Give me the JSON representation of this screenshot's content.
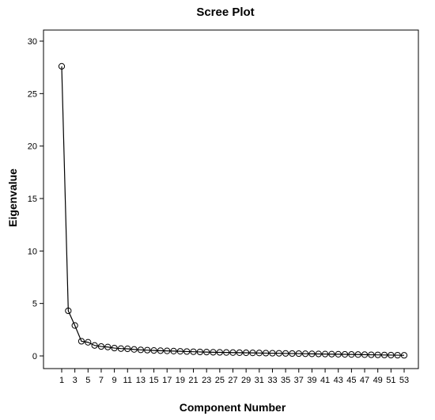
{
  "chart_data": {
    "type": "line",
    "title": "Scree Plot",
    "xlabel": "Component Number",
    "ylabel": "Eigenvalue",
    "xlim": [
      1,
      53
    ],
    "ylim": [
      0,
      30
    ],
    "y_ticks": [
      "0",
      "5",
      "10",
      "15",
      "20",
      "25",
      "30"
    ],
    "x_ticks": [
      "1",
      "3",
      "5",
      "7",
      "9",
      "11",
      "13",
      "15",
      "17",
      "19",
      "21",
      "23",
      "25",
      "27",
      "29",
      "31",
      "33",
      "35",
      "37",
      "39",
      "41",
      "43",
      "45",
      "47",
      "49",
      "51",
      "53"
    ],
    "grid": false,
    "legend": "none",
    "marker": "open-circle",
    "x": [
      1,
      2,
      3,
      4,
      5,
      6,
      7,
      8,
      9,
      10,
      11,
      12,
      13,
      14,
      15,
      16,
      17,
      18,
      19,
      20,
      21,
      22,
      23,
      24,
      25,
      26,
      27,
      28,
      29,
      30,
      31,
      32,
      33,
      34,
      35,
      36,
      37,
      38,
      39,
      40,
      41,
      42,
      43,
      44,
      45,
      46,
      47,
      48,
      49,
      50,
      51,
      52,
      53
    ],
    "values": [
      27.6,
      4.3,
      2.9,
      1.4,
      1.3,
      1.0,
      0.9,
      0.85,
      0.75,
      0.7,
      0.68,
      0.62,
      0.58,
      0.55,
      0.52,
      0.5,
      0.48,
      0.46,
      0.44,
      0.42,
      0.4,
      0.38,
      0.37,
      0.35,
      0.34,
      0.33,
      0.32,
      0.31,
      0.3,
      0.29,
      0.28,
      0.27,
      0.26,
      0.25,
      0.24,
      0.23,
      0.22,
      0.21,
      0.2,
      0.19,
      0.18,
      0.17,
      0.16,
      0.15,
      0.14,
      0.13,
      0.12,
      0.11,
      0.1,
      0.09,
      0.08,
      0.07,
      0.06
    ]
  },
  "colors": {
    "line": "#000000",
    "axis": "#000000",
    "background": "#ffffff"
  }
}
